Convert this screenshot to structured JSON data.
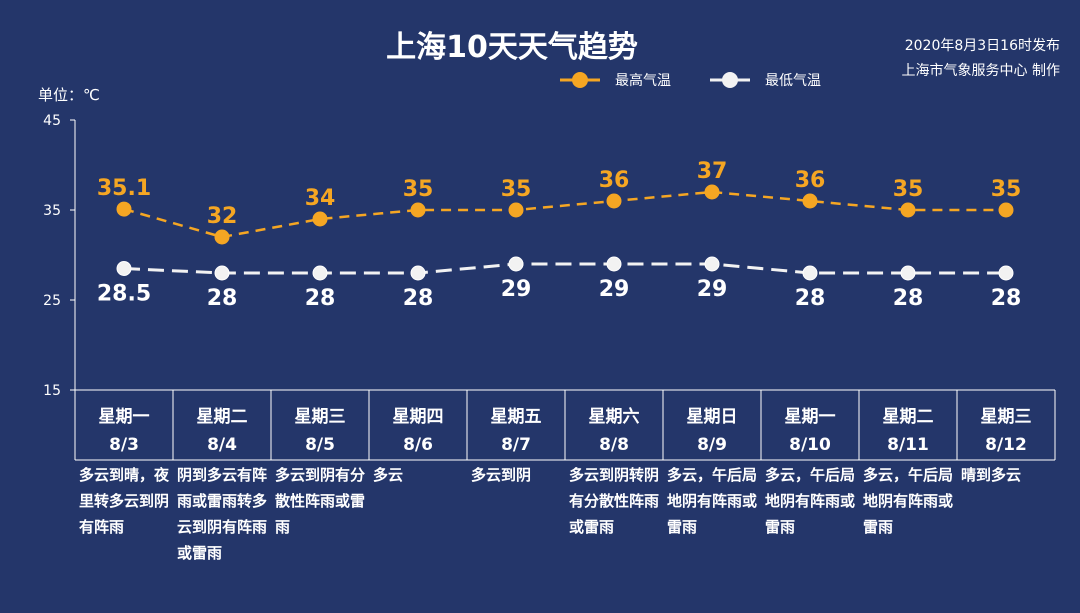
{
  "header": {
    "title": "上海10天天气趋势",
    "issued": "2020年8月3日16时发布",
    "maker": "上海市气象服务中心 制作",
    "unit": "单位：℃"
  },
  "colors": {
    "background": "#24366a",
    "high": "#f5a623",
    "low": "#f2f2f2"
  },
  "chart_data": {
    "type": "line",
    "title": "上海10天天气趋势",
    "ylabel": "单位：℃",
    "ylim": [
      15,
      45
    ],
    "yticks": [
      15,
      25,
      35,
      45
    ],
    "legend_position": "top",
    "days": [
      "星期一",
      "星期二",
      "星期三",
      "星期四",
      "星期五",
      "星期六",
      "星期日",
      "星期一",
      "星期二",
      "星期三"
    ],
    "categories": [
      "8/3",
      "8/4",
      "8/5",
      "8/6",
      "8/7",
      "8/8",
      "8/9",
      "8/10",
      "8/11",
      "8/12"
    ],
    "weather": [
      "多云到晴，夜里转多云到阴有阵雨",
      "阴到多云有阵雨或雷雨转多云到阴有阵雨或雷雨",
      "多云到阴有分散性阵雨或雷雨",
      "多云",
      "多云到阴",
      "多云到阴转阴有分散性阵雨或雷雨",
      "多云，午后局地阴有阵雨或雷雨",
      "多云，午后局地阴有阵雨或雷雨",
      "多云，午后局地阴有阵雨或雷雨",
      "晴到多云"
    ],
    "series": [
      {
        "name": "最高气温",
        "values": [
          35.1,
          32,
          34,
          35,
          35,
          36,
          37,
          36,
          35,
          35
        ]
      },
      {
        "name": "最低气温",
        "values": [
          28.5,
          28,
          28,
          28,
          29,
          29,
          29,
          28,
          28,
          28
        ]
      }
    ]
  }
}
